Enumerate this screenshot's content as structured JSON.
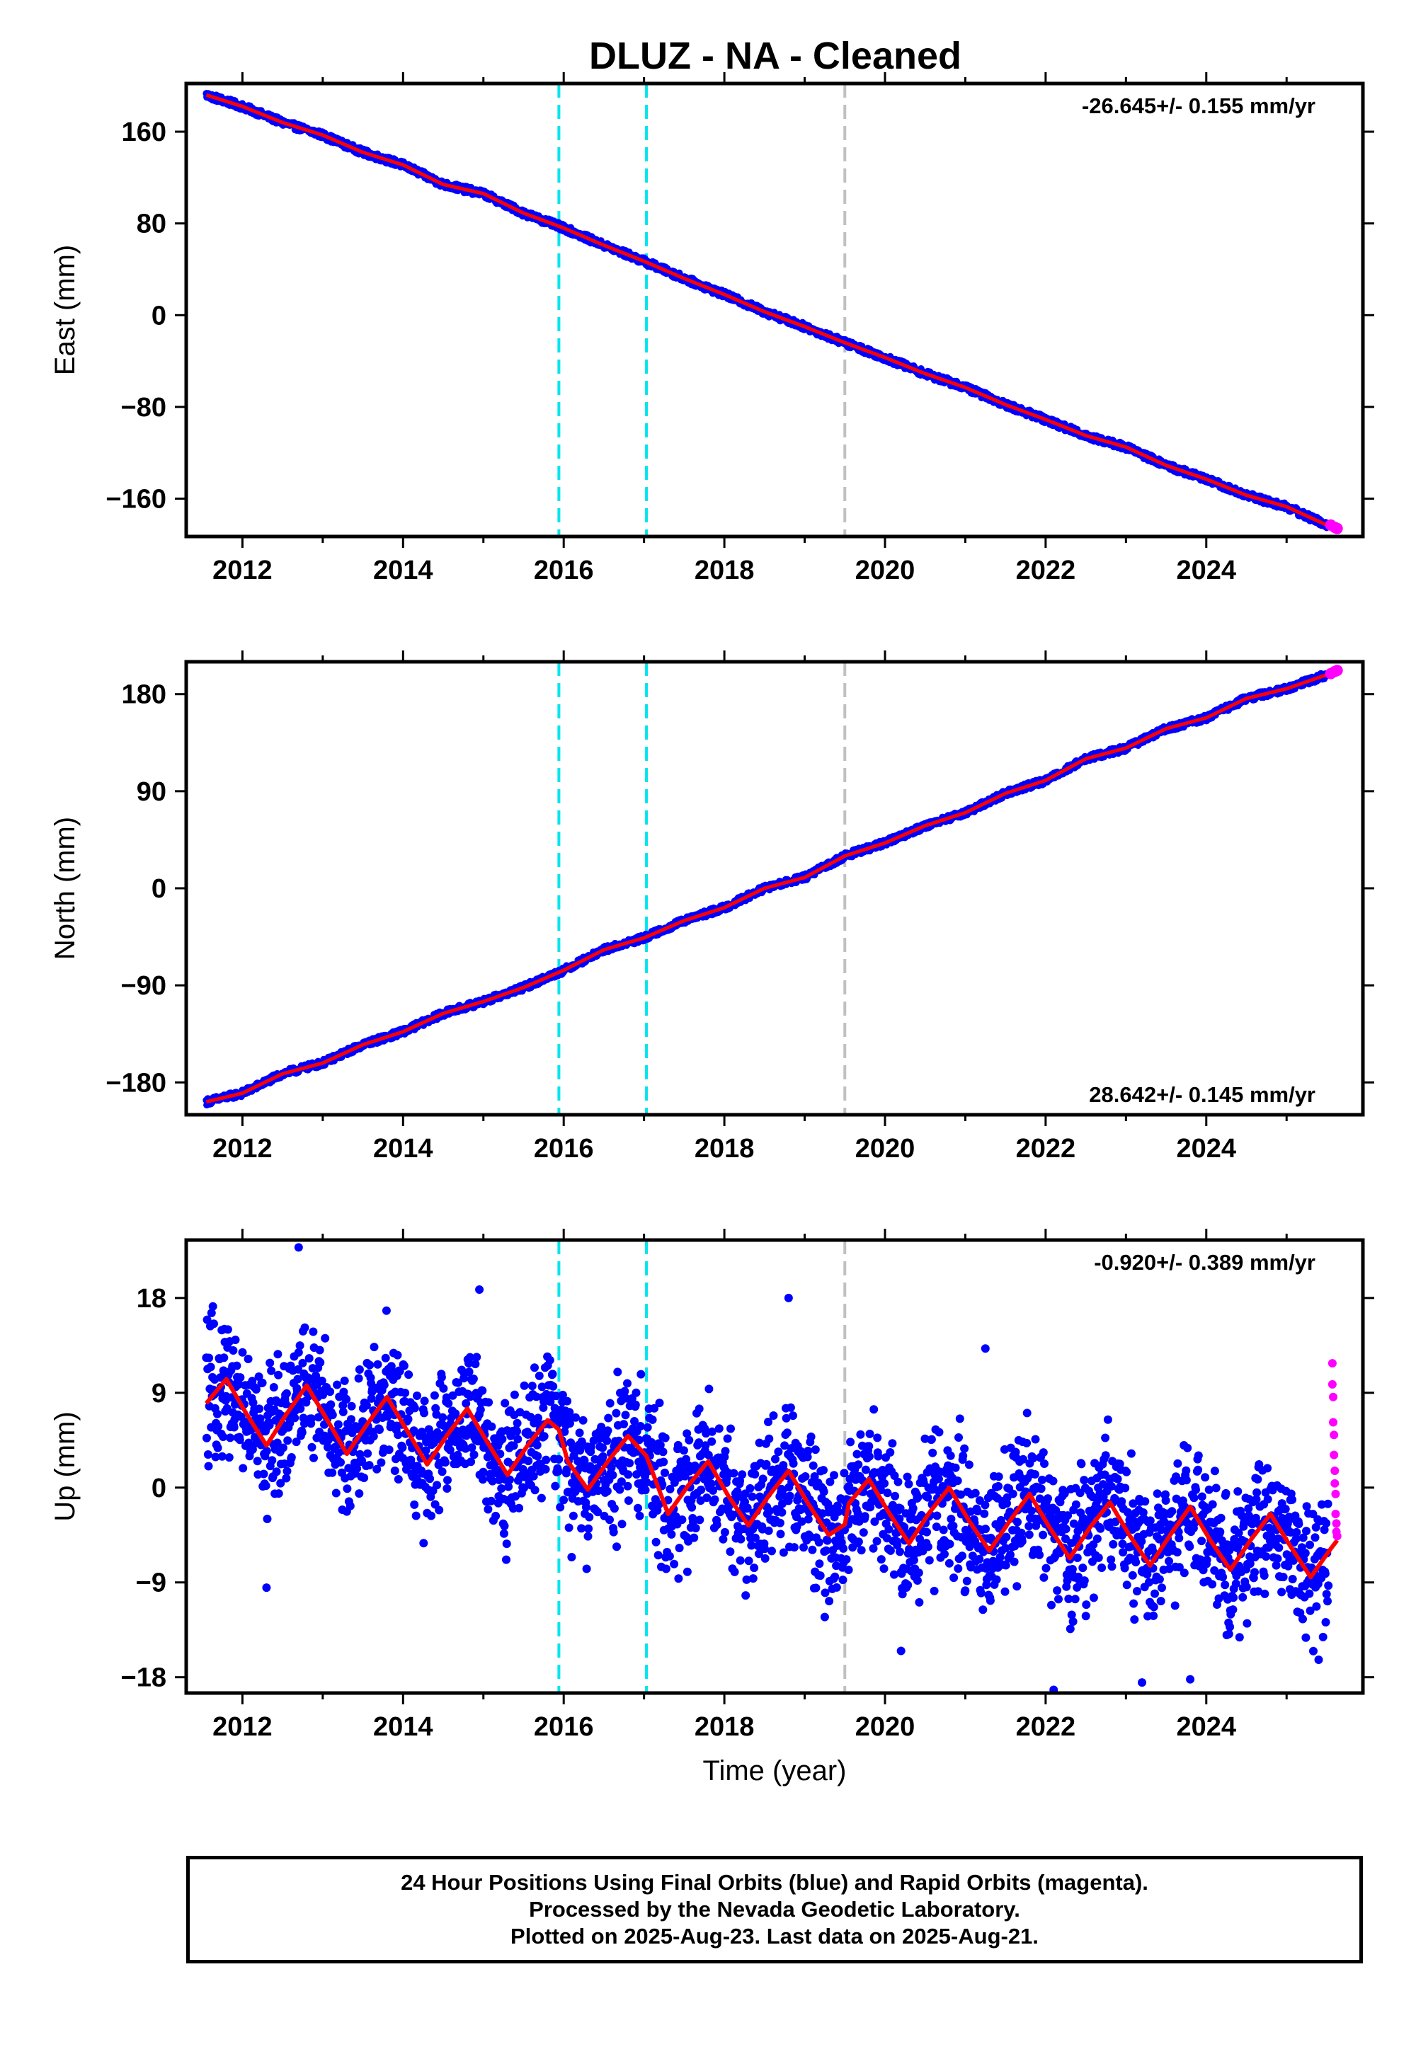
{
  "title": "DLUZ  - NA - Cleaned",
  "footer": {
    "line1": "24 Hour Positions Using Final Orbits (blue) and Rapid Orbits (magenta).",
    "line2": "Processed by the Nevada Geodetic Laboratory.",
    "line3": "Plotted on 2025-Aug-23. Last data on 2025-Aug-21."
  },
  "colors": {
    "final_orbits": "#0000ff",
    "rapid_orbits": "#ff00ff",
    "model": "#ff0000",
    "event_cyan": "#00e5ee",
    "event_gray": "#c0c0c0"
  },
  "chart_data": [
    {
      "type": "scatter",
      "panel": "east",
      "ylabel": "East (mm)",
      "xlabel": "",
      "xlim": [
        2011.3,
        2025.95
      ],
      "ylim": [
        -193,
        202
      ],
      "yticks": [
        160,
        80,
        0,
        -80,
        -160
      ],
      "ytick_labels": [
        "160",
        "80",
        "0",
        "−80",
        "−160"
      ],
      "xticks": [
        2012,
        2014,
        2016,
        2018,
        2020,
        2022,
        2024
      ],
      "xtick_labels": [
        "2012",
        "2014",
        "2016",
        "2018",
        "2020",
        "2022",
        "2024"
      ],
      "rate_text": "-26.645+/- 0.155 mm/yr",
      "rate_position": "top-right",
      "event_lines": [
        {
          "x": 2015.94,
          "color": "cyan"
        },
        {
          "x": 2017.03,
          "color": "cyan"
        },
        {
          "x": 2019.5,
          "color": "gray"
        }
      ],
      "series": [
        {
          "orbits": "final",
          "x": [
            2011.55,
            2012.0,
            2012.5,
            2013.0,
            2013.5,
            2014.0,
            2014.5,
            2015.0,
            2015.5,
            2016.0,
            2016.5,
            2017.0,
            2017.5,
            2018.0,
            2018.5,
            2019.0,
            2019.5,
            2020.0,
            2020.5,
            2021.0,
            2021.5,
            2022.0,
            2022.5,
            2023.0,
            2023.5,
            2024.0,
            2024.5,
            2025.0,
            2025.5
          ],
          "y": [
            192,
            182,
            168,
            157,
            142,
            131,
            114,
            106,
            89,
            76,
            61,
            47,
            32,
            18,
            3,
            -10,
            -24,
            -37,
            -51,
            -63,
            -78,
            -91,
            -105,
            -115,
            -131,
            -143,
            -157,
            -167,
            -183
          ]
        },
        {
          "orbits": "rapid",
          "x": [
            2025.55,
            2025.6,
            2025.63
          ],
          "y": [
            -183,
            -185,
            -186
          ]
        }
      ]
    },
    {
      "type": "scatter",
      "panel": "north",
      "ylabel": "North (mm)",
      "xlabel": "",
      "xlim": [
        2011.3,
        2025.95
      ],
      "ylim": [
        -210,
        210
      ],
      "yticks": [
        180,
        90,
        0,
        -90,
        -180
      ],
      "ytick_labels": [
        "180",
        "90",
        "0",
        "−90",
        "−180"
      ],
      "xticks": [
        2012,
        2014,
        2016,
        2018,
        2020,
        2022,
        2024
      ],
      "xtick_labels": [
        "2012",
        "2014",
        "2016",
        "2018",
        "2020",
        "2022",
        "2024"
      ],
      "rate_text": "28.642+/- 0.145 mm/yr",
      "rate_position": "bottom-right",
      "event_lines": [
        {
          "x": 2015.94,
          "color": "cyan"
        },
        {
          "x": 2017.03,
          "color": "cyan"
        },
        {
          "x": 2019.5,
          "color": "gray"
        }
      ],
      "series": [
        {
          "orbits": "final",
          "x": [
            2011.55,
            2012.0,
            2012.5,
            2013.0,
            2013.5,
            2014.0,
            2014.5,
            2015.0,
            2015.5,
            2016.0,
            2016.5,
            2017.0,
            2017.5,
            2018.0,
            2018.5,
            2019.0,
            2019.5,
            2020.0,
            2020.5,
            2021.0,
            2021.5,
            2022.0,
            2022.5,
            2023.0,
            2023.5,
            2024.0,
            2024.5,
            2025.0,
            2025.5
          ],
          "y": [
            -198,
            -190,
            -172,
            -162,
            -145,
            -133,
            -116,
            -105,
            -92,
            -76,
            -57,
            -46,
            -30,
            -18,
            0,
            10,
            30,
            42,
            58,
            70,
            88,
            100,
            120,
            130,
            148,
            158,
            176,
            185,
            198
          ]
        },
        {
          "orbits": "rapid",
          "x": [
            2025.55,
            2025.6,
            2025.63
          ],
          "y": [
            199,
            201,
            202
          ]
        }
      ]
    },
    {
      "type": "scatter",
      "panel": "up",
      "ylabel": "Up (mm)",
      "xlabel": "Time (year)",
      "xlim": [
        2011.3,
        2025.95
      ],
      "ylim": [
        -19.5,
        23.5
      ],
      "yticks": [
        18,
        9,
        0,
        -9,
        -18
      ],
      "ytick_labels": [
        "18",
        "9",
        "0",
        "−9",
        "−18"
      ],
      "xticks": [
        2012,
        2014,
        2016,
        2018,
        2020,
        2022,
        2024
      ],
      "xtick_labels": [
        "2012",
        "2014",
        "2016",
        "2018",
        "2020",
        "2022",
        "2024"
      ],
      "rate_text": "-0.920+/- 0.389 mm/yr",
      "rate_position": "top-right",
      "event_lines": [
        {
          "x": 2015.94,
          "color": "cyan"
        },
        {
          "x": 2017.03,
          "color": "cyan"
        },
        {
          "x": 2019.5,
          "color": "gray"
        }
      ],
      "model": {
        "x": [
          2011.55,
          2011.8,
          2012.05,
          2012.3,
          2012.55,
          2012.8,
          2013.05,
          2013.3,
          2013.55,
          2013.8,
          2014.05,
          2014.3,
          2014.55,
          2014.8,
          2015.05,
          2015.3,
          2015.55,
          2015.8,
          2015.94,
          2016.05,
          2016.3,
          2016.55,
          2016.8,
          2017.03,
          2017.3,
          2017.55,
          2017.8,
          2018.05,
          2018.3,
          2018.55,
          2018.8,
          2019.05,
          2019.3,
          2019.5,
          2019.55,
          2019.8,
          2020.05,
          2020.3,
          2020.55,
          2020.8,
          2021.05,
          2021.3,
          2021.55,
          2021.8,
          2022.05,
          2022.3,
          2022.55,
          2022.8,
          2023.05,
          2023.3,
          2023.55,
          2023.8,
          2024.05,
          2024.3,
          2024.55,
          2024.8,
          2025.05,
          2025.3,
          2025.55,
          2025.63
        ],
        "y": [
          8.0,
          10.3,
          7.0,
          4.0,
          7.0,
          9.7,
          6.5,
          3.2,
          6.0,
          8.6,
          5.4,
          2.2,
          5.0,
          7.5,
          4.3,
          1.2,
          4.0,
          6.4,
          5.5,
          2.5,
          -0.2,
          2.5,
          4.9,
          3.0,
          -2.5,
          0.2,
          2.5,
          -0.8,
          -3.6,
          -0.8,
          1.6,
          -1.6,
          -4.5,
          -3.5,
          -1.5,
          0.8,
          -2.4,
          -5.3,
          -2.4,
          0.0,
          -3.2,
          -6.0,
          -3.2,
          -0.6,
          -3.8,
          -6.7,
          -3.8,
          -1.4,
          -4.6,
          -7.4,
          -4.5,
          -1.8,
          -5.0,
          -7.8,
          -5.0,
          -2.5,
          -5.6,
          -8.5,
          -5.8,
          -5.0
        ]
      },
      "scatter_noise_mm": 4,
      "series": [
        {
          "orbits": "final",
          "x": [
            2011.8,
            2012.05,
            2012.3,
            2012.55,
            2012.8,
            2013.05,
            2013.3,
            2013.55,
            2013.8,
            2014.05,
            2014.3,
            2014.55,
            2014.8,
            2015.05,
            2015.3,
            2015.55,
            2015.8,
            2016.05,
            2016.3,
            2016.55,
            2016.8,
            2017.05,
            2017.3,
            2017.55,
            2017.8,
            2018.05,
            2018.3,
            2018.55,
            2018.8,
            2019.05,
            2019.3,
            2019.55,
            2019.8,
            2020.05,
            2020.3,
            2020.55,
            2020.8,
            2021.05,
            2021.3,
            2021.55,
            2021.8,
            2022.05,
            2022.3,
            2022.55,
            2022.8,
            2023.05,
            2023.3,
            2023.55,
            2023.8,
            2024.05,
            2024.3,
            2024.55,
            2024.8,
            2025.05,
            2025.3,
            2025.5
          ],
          "y": [
            10,
            7,
            4,
            7,
            10,
            6,
            3,
            6,
            9,
            5,
            2,
            5,
            7,
            4,
            1,
            4,
            6,
            2,
            0,
            2,
            5,
            -2,
            -3,
            0,
            2,
            -1,
            -4,
            -1,
            2,
            -2,
            -5,
            -1,
            1,
            -2,
            -5,
            -2,
            0,
            -3,
            -6,
            -3,
            -1,
            -4,
            -7,
            -4,
            -1,
            -5,
            -7,
            -5,
            -2,
            -5,
            -8,
            -5,
            -3,
            -6,
            -8,
            -9
          ]
        },
        {
          "orbits": "rapid",
          "x": [
            2025.57,
            2025.57,
            2025.58,
            2025.58,
            2025.59,
            2025.59,
            2025.6,
            2025.6,
            2025.61,
            2025.61,
            2025.62,
            2025.62,
            2025.63
          ],
          "y": [
            11.8,
            9.8,
            8.6,
            6.2,
            5.0,
            3.1,
            1.6,
            0.4,
            -0.6,
            -2.5,
            -3.4,
            -4.2,
            -4.6
          ]
        }
      ],
      "outliers": [
        {
          "x": 2012.7,
          "y": 22.8
        },
        {
          "x": 2014.95,
          "y": 18.8
        },
        {
          "x": 2018.8,
          "y": 18.0
        },
        {
          "x": 2021.25,
          "y": 13.2
        },
        {
          "x": 2012.3,
          "y": -9.5
        },
        {
          "x": 2020.2,
          "y": -15.5
        },
        {
          "x": 2022.1,
          "y": -19.2
        },
        {
          "x": 2023.2,
          "y": -18.5
        },
        {
          "x": 2023.8,
          "y": -18.2
        }
      ]
    }
  ]
}
